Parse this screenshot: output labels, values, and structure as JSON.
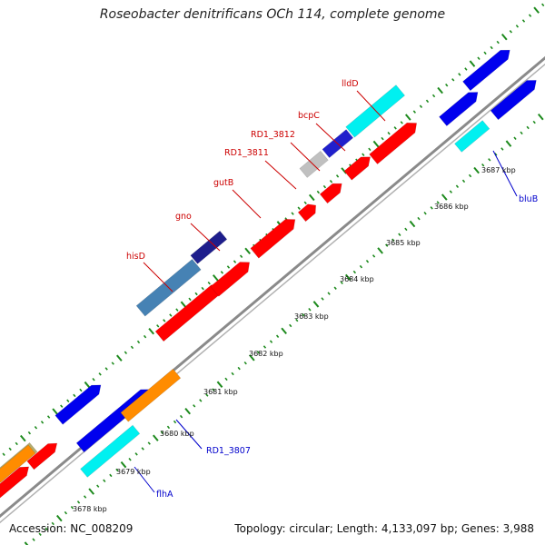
{
  "header": {
    "title": "Roseobacter denitrificans OCh 114, complete genome"
  },
  "footer": {
    "accession": "Accession: NC_008209",
    "summary": "Topology: circular; Length: 4,133,097 bp; Genes: 3,988"
  },
  "colors": {
    "backbone": "#8a8a8a",
    "ticks": "#1d8a1d",
    "label_red": "#cc0000",
    "label_blue": "#0000cc"
  },
  "kbp_labels": [
    "3678 kbp",
    "3679 kbp",
    "3680 kbp",
    "3681 kbp",
    "3682 kbp",
    "3683 kbp",
    "3684 kbp",
    "3685 kbp",
    "3686 kbp",
    "3687 kbp"
  ],
  "gene_labels": {
    "lldD": "lldD",
    "bcpC": "bcpC",
    "RD1_3812": "RD1_3812",
    "RD1_3811": "RD1_3811",
    "gutB": "gutB",
    "gno": "gno",
    "hisD": "hisD",
    "bluB": "bluB",
    "RD1_3807": "RD1_3807",
    "flhA": "flhA"
  }
}
